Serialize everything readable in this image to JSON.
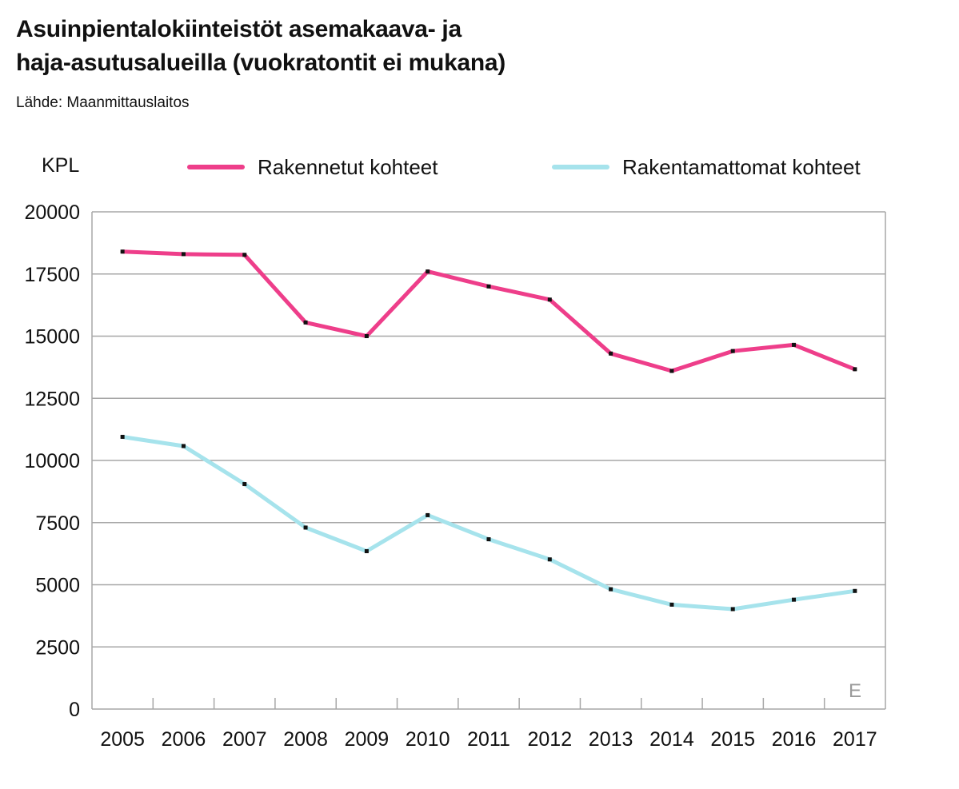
{
  "header": {
    "title_line1": "Asuinpientalokiinteistöt asemakaava- ja",
    "title_line2": "haja-asutusalueilla (vuokratontit ei mukana)",
    "source": "Lähde: Maanmittauslaitos"
  },
  "watermark": "E",
  "chart_data": {
    "type": "line",
    "title": "Asuinpientalokiinteistöt asemakaava- ja haja-asutusalueilla (vuokratontit ei mukana)",
    "ylabel": "KPL",
    "xlabel": "",
    "ylim": [
      0,
      20000
    ],
    "yticks": [
      "0",
      "2500",
      "5000",
      "7500",
      "10000",
      "12500",
      "15000",
      "17500",
      "20000"
    ],
    "grid": true,
    "legend_position": "top",
    "categories": [
      "2005",
      "2006",
      "2007",
      "2008",
      "2009",
      "2010",
      "2011",
      "2012",
      "2013",
      "2014",
      "2015",
      "2016",
      "2017"
    ],
    "series": [
      {
        "name": "Rakennetut kohteet",
        "color": "#ee3e8a",
        "values": [
          18400,
          18300,
          18270,
          15550,
          15000,
          17600,
          17000,
          16470,
          14300,
          13600,
          14400,
          14650,
          13670
        ]
      },
      {
        "name": "Rakentamattomat kohteet",
        "color": "#a6e3ec",
        "values": [
          10950,
          10580,
          9050,
          7300,
          6350,
          7800,
          6830,
          6020,
          4820,
          4200,
          4020,
          4400,
          4750
        ]
      }
    ]
  }
}
